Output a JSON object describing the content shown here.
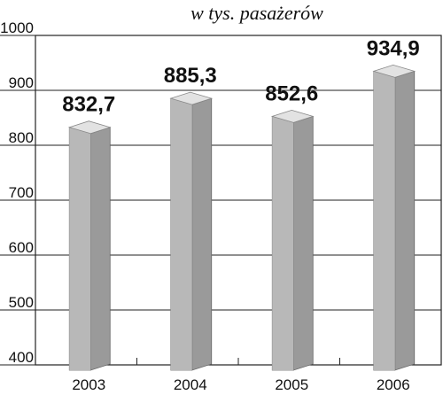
{
  "chart_data": {
    "type": "bar3d",
    "title": "w tys. pasażerów",
    "categories": [
      "2003",
      "2004",
      "2005",
      "2006"
    ],
    "values": [
      832.7,
      885.3,
      852.6,
      934.9
    ],
    "value_labels": [
      "832,7",
      "885,3",
      "852,6",
      "934,9"
    ],
    "color": "#b8b8b8",
    "ylim": [
      400,
      1000
    ],
    "yticks": [
      400,
      500,
      600,
      700,
      800,
      900,
      1000
    ],
    "grid": true
  }
}
